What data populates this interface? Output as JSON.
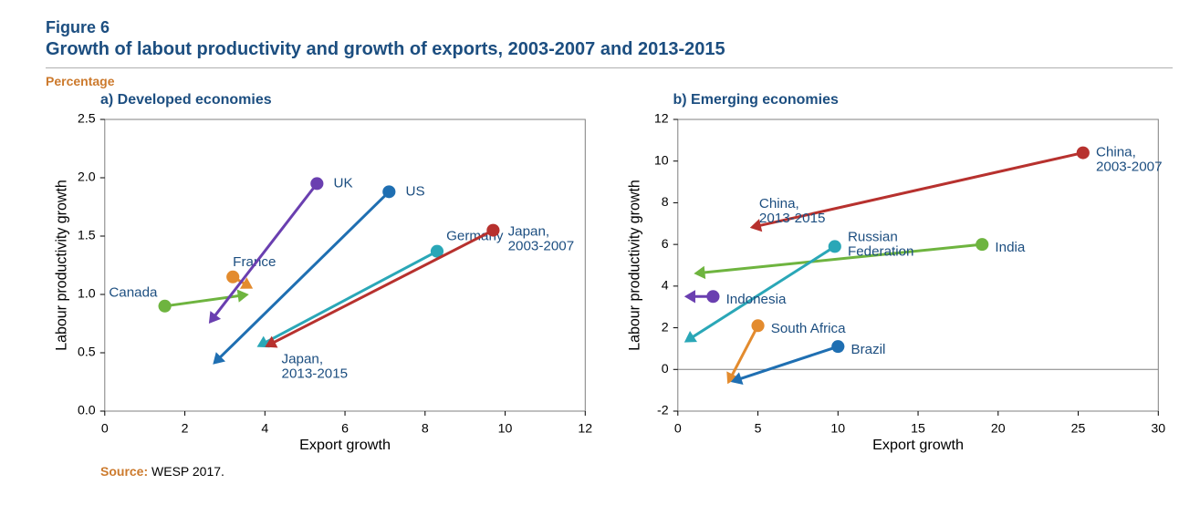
{
  "figure_number": "Figure 6",
  "figure_title": "Growth of labout productivity and growth of exports, 2003-2007 and 2013-2015",
  "unit_label": "Percentage",
  "source_label": "Source:",
  "source_text": "WESP 2017.",
  "colors": {
    "title": "#1c4e80",
    "accent": "#cc7a2d",
    "axis": "#000000",
    "grid": "#b0b0b0",
    "background": "#ffffff"
  },
  "typography": {
    "title_fontsize": 20,
    "panel_title_fontsize": 16,
    "axis_label_fontsize": 16,
    "tick_fontsize": 14,
    "series_label_fontsize": 15
  },
  "panels": [
    {
      "key": "developed",
      "title": "a) Developed economies",
      "type": "arrow-scatter",
      "xlabel": "Export growth",
      "ylabel": "Labour productivity growth",
      "xlim": [
        0,
        12
      ],
      "ylim": [
        0.0,
        2.5
      ],
      "xtick_step": 2,
      "ytick_step": 0.5,
      "ytick_decimals": 1,
      "grid": false,
      "border_color": "#808080",
      "line_width": 3,
      "marker_radius": 7,
      "arrow_size": 12,
      "series": [
        {
          "name": "Canada",
          "color": "#6eb43f",
          "start": [
            1.5,
            0.9
          ],
          "end": [
            3.6,
            1.0
          ],
          "label": "Canada",
          "label_at": "start",
          "label_dx": -8,
          "label_dy": -14
        },
        {
          "name": "France",
          "color": "#e38b2e",
          "start": [
            3.2,
            1.15
          ],
          "end": [
            3.7,
            1.05
          ],
          "label": "France",
          "label_at": "start",
          "label_dx": 0,
          "label_dy": -16
        },
        {
          "name": "UK",
          "color": "#6a3fb0",
          "start": [
            5.3,
            1.95
          ],
          "end": [
            2.6,
            0.75
          ],
          "label": "UK",
          "label_at": "start",
          "label_dx": 18,
          "label_dy": 0
        },
        {
          "name": "US",
          "color": "#1f6fb2",
          "start": [
            7.1,
            1.88
          ],
          "end": [
            2.7,
            0.4
          ],
          "label": "US",
          "label_at": "start",
          "label_dx": 18,
          "label_dy": 0
        },
        {
          "name": "Germany",
          "color": "#2aa7b7",
          "start": [
            8.3,
            1.37
          ],
          "end": [
            3.8,
            0.55
          ],
          "label": "Germany",
          "label_at": "start",
          "label_dx": 10,
          "label_dy": -16
        },
        {
          "name": "Japan",
          "color": "#b7312e",
          "start": [
            9.7,
            1.55
          ],
          "end": [
            4.0,
            0.55
          ],
          "multi_labels": [
            {
              "text": "Japan,\n2003-2007",
              "anchor": "start",
              "dx": 16,
              "dy": 2
            },
            {
              "text": "Japan,\n2013-2015",
              "anchor": "end",
              "dx": 18,
              "dy": 14
            }
          ]
        }
      ]
    },
    {
      "key": "emerging",
      "title": "b) Emerging economies",
      "type": "arrow-scatter",
      "xlabel": "Export growth",
      "ylabel": "Labour productivity growth",
      "xlim": [
        0,
        30
      ],
      "ylim": [
        -2,
        12
      ],
      "xtick_step": 5,
      "ytick_step": 2,
      "ytick_decimals": 0,
      "grid": false,
      "zero_line": true,
      "border_color": "#808080",
      "line_width": 3,
      "marker_radius": 7,
      "arrow_size": 12,
      "series": [
        {
          "name": "China",
          "color": "#b7312e",
          "start": [
            25.3,
            10.4
          ],
          "end": [
            4.5,
            6.8
          ],
          "multi_labels": [
            {
              "text": "China,\n2003-2007",
              "anchor": "start",
              "dx": 14,
              "dy": 0
            },
            {
              "text": "China,\n2013-2015",
              "anchor": "end",
              "dx": 10,
              "dy": -26
            }
          ]
        },
        {
          "name": "India",
          "color": "#6eb43f",
          "start": [
            19.0,
            6.0
          ],
          "end": [
            1.0,
            4.6
          ],
          "label": "India",
          "label_at": "start",
          "label_dx": 14,
          "label_dy": 4
        },
        {
          "name": "Russian Fed.",
          "color": "#2aa7b7",
          "start": [
            9.8,
            5.9
          ],
          "end": [
            0.4,
            1.3
          ],
          "label": "Russian\nFederation",
          "label_at": "start",
          "label_dx": 14,
          "label_dy": -10
        },
        {
          "name": "Indonesia",
          "color": "#6a3fb0",
          "start": [
            2.2,
            3.5
          ],
          "end": [
            0.4,
            3.5
          ],
          "label": "Indonesia",
          "label_at": "start",
          "label_dx": 14,
          "label_dy": 4
        },
        {
          "name": "South Africa",
          "color": "#e38b2e",
          "start": [
            5.0,
            2.1
          ],
          "end": [
            3.1,
            -0.7
          ],
          "label": "South Africa",
          "label_at": "start",
          "label_dx": 14,
          "label_dy": 4
        },
        {
          "name": "Brazil",
          "color": "#1f6fb2",
          "start": [
            10.0,
            1.1
          ],
          "end": [
            3.3,
            -0.6
          ],
          "label": "Brazil",
          "label_at": "start",
          "label_dx": 14,
          "label_dy": 4
        }
      ]
    }
  ]
}
